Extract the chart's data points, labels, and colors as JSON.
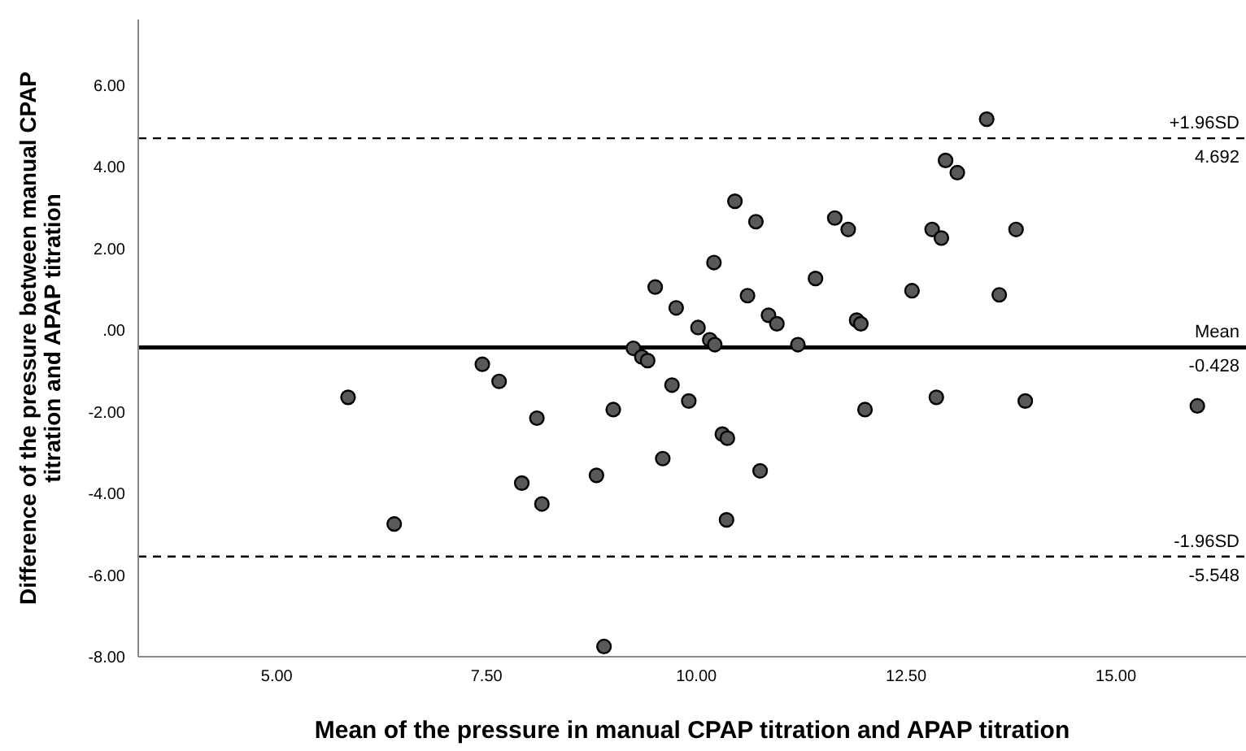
{
  "chart_data": {
    "type": "scatter",
    "xlabel": "Mean of the pressure in manual CPAP titration and APAP titration",
    "ylabel": "Difference of the pressure between manual CPAP titration and APAP titration",
    "marker": "circle",
    "grid": false,
    "legend": false,
    "xlim": [
      3.35,
      16.55
    ],
    "ylim": [
      -8,
      7.6
    ],
    "xticks": [
      {
        "value": 5,
        "label": "5.00"
      },
      {
        "value": 7.5,
        "label": "7.50"
      },
      {
        "value": 10,
        "label": "10.00"
      },
      {
        "value": 12.5,
        "label": "12.50"
      },
      {
        "value": 15,
        "label": "15.00"
      }
    ],
    "yticks": [
      {
        "value": -8,
        "label": "-8.00"
      },
      {
        "value": -6,
        "label": "-6.00"
      },
      {
        "value": -4,
        "label": "-4.00"
      },
      {
        "value": -2,
        "label": "-2.00"
      },
      {
        "value": 0,
        "label": ".00"
      },
      {
        "value": 2,
        "label": "2.00"
      },
      {
        "value": 4,
        "label": "4.00"
      },
      {
        "value": 6,
        "label": "6.00"
      }
    ],
    "ref_lines": [
      {
        "axis": "y",
        "value": 4.692,
        "label": "+1.96SD\n4.692",
        "line_style": "dashed",
        "color": "#000000"
      },
      {
        "axis": "y",
        "value": -0.428,
        "label": "Mean\n-0.428",
        "line_style": "solid",
        "color": "#000000"
      },
      {
        "axis": "y",
        "value": -5.548,
        "label": "-1.96SD\n-5.548",
        "line_style": "dashed",
        "color": "#000000"
      }
    ],
    "series": [
      {
        "color": "#595959",
        "x": [
          5.85,
          6.4,
          7.45,
          7.65,
          7.92,
          8.1,
          8.16,
          8.81,
          8.9,
          9.01,
          9.25,
          9.35,
          9.42,
          9.51,
          9.6,
          9.71,
          9.76,
          9.91,
          10.02,
          10.16,
          10.22,
          10.21,
          10.31,
          10.37,
          10.36,
          10.46,
          10.61,
          10.71,
          10.76,
          10.86,
          10.96,
          11.21,
          11.42,
          11.65,
          11.81,
          11.91,
          11.96,
          12.01,
          12.57,
          12.81,
          12.86,
          12.92,
          12.97,
          13.11,
          13.46,
          13.61,
          13.81,
          13.92,
          15.97
        ],
        "values": [
          -1.65,
          -4.75,
          -0.84,
          -1.26,
          -3.75,
          -2.16,
          -4.26,
          -3.56,
          -7.75,
          -1.95,
          -0.45,
          -0.66,
          -0.75,
          1.05,
          -3.15,
          -1.35,
          0.54,
          -1.74,
          0.06,
          -0.24,
          -0.36,
          1.65,
          -2.55,
          -2.65,
          -4.65,
          3.15,
          0.84,
          2.65,
          -3.45,
          0.36,
          0.15,
          -0.36,
          1.26,
          2.74,
          2.46,
          0.24,
          0.15,
          -1.95,
          0.96,
          2.46,
          -1.65,
          2.25,
          4.15,
          3.85,
          5.16,
          0.86,
          2.46,
          -1.74,
          -1.86
        ]
      }
    ]
  }
}
